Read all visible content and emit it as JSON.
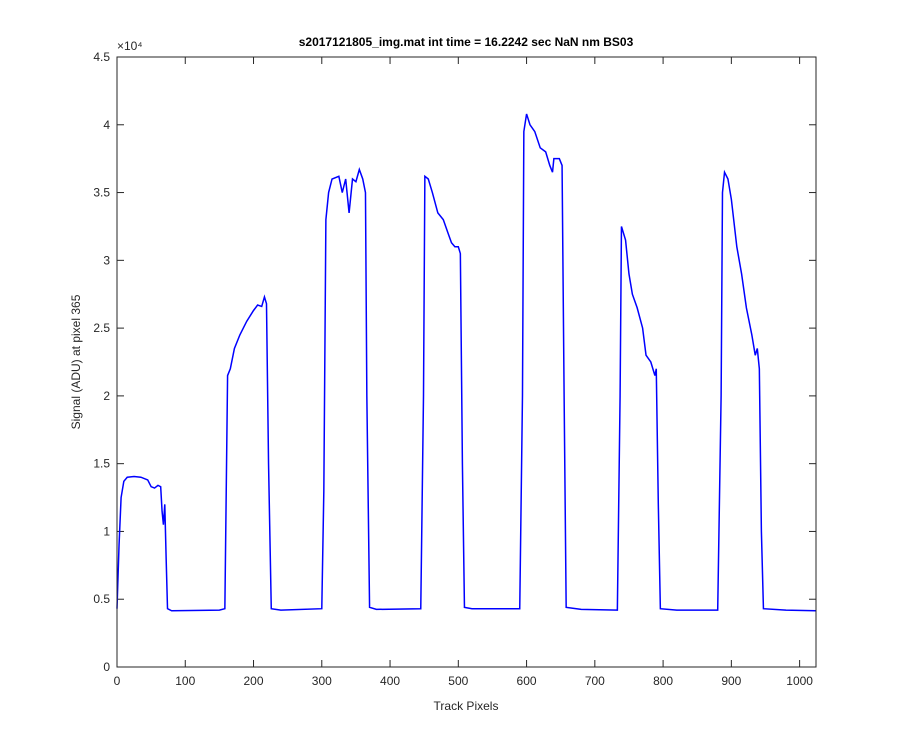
{
  "chart_data": {
    "type": "line",
    "title": "s2017121805_img.mat int time = 16.2242 sec  NaN nm BS03",
    "x_label": "Track Pixels",
    "y_label": "Signal (ADU) at pixel 365",
    "y_exponent_label": "×10⁴",
    "xlim": [
      0,
      1024
    ],
    "ylim": [
      0,
      45000
    ],
    "xticks": [
      0,
      100,
      200,
      300,
      400,
      500,
      600,
      700,
      800,
      900,
      1000
    ],
    "yticks": [
      0,
      {
        "value": 5000,
        "label": "0.5"
      },
      {
        "value": 10000,
        "label": "1"
      },
      {
        "value": 15000,
        "label": "1.5"
      },
      {
        "value": 20000,
        "label": "2"
      },
      {
        "value": 25000,
        "label": "2.5"
      },
      {
        "value": 30000,
        "label": "3"
      },
      {
        "value": 35000,
        "label": "3.5"
      },
      {
        "value": 40000,
        "label": "4"
      },
      {
        "value": 45000,
        "label": "4.5"
      }
    ],
    "series": [
      {
        "color": "#0000ff",
        "x": [
          0,
          3,
          6,
          10,
          15,
          25,
          35,
          45,
          50,
          55,
          60,
          64,
          66,
          68,
          70,
          72,
          74,
          80,
          150,
          158,
          162,
          166,
          172,
          180,
          190,
          200,
          206,
          212,
          216,
          219,
          222,
          226,
          240,
          300,
          303,
          306,
          310,
          315,
          325,
          330,
          335,
          340,
          345,
          350,
          355,
          360,
          364,
          366,
          370,
          380,
          445,
          449,
          451,
          456,
          462,
          470,
          478,
          485,
          490,
          495,
          500,
          503,
          506,
          509,
          520,
          590,
          594,
          596,
          600,
          605,
          612,
          620,
          628,
          634,
          638,
          640,
          648,
          652,
          655,
          658,
          680,
          733,
          737,
          739,
          745,
          750,
          755,
          762,
          770,
          775,
          782,
          788,
          790,
          793,
          796,
          820,
          880,
          885,
          887,
          890,
          895,
          900,
          908,
          915,
          922,
          930,
          935,
          938,
          941,
          944,
          947,
          980,
          1024
        ],
        "values": [
          4300,
          9000,
          12500,
          13700,
          14000,
          14050,
          14000,
          13800,
          13300,
          13200,
          13400,
          13300,
          11500,
          10500,
          12000,
          8000,
          4300,
          4150,
          4200,
          4300,
          21500,
          22000,
          23500,
          24500,
          25500,
          26300,
          26700,
          26600,
          27300,
          26800,
          15000,
          4300,
          4200,
          4300,
          13000,
          33000,
          35000,
          36000,
          36200,
          35000,
          36000,
          33500,
          36000,
          35800,
          36700,
          36000,
          35000,
          20000,
          4400,
          4250,
          4300,
          20000,
          36200,
          36000,
          35000,
          33500,
          33000,
          32000,
          31300,
          31000,
          31000,
          30500,
          15000,
          4400,
          4300,
          4300,
          20000,
          39500,
          40800,
          40000,
          39500,
          38300,
          38000,
          37000,
          36500,
          37500,
          37500,
          37000,
          20000,
          4400,
          4250,
          4200,
          20000,
          32500,
          31500,
          29000,
          27500,
          26500,
          25000,
          23000,
          22500,
          21500,
          22000,
          12000,
          4300,
          4200,
          4200,
          20000,
          35000,
          36500,
          36000,
          34500,
          31000,
          29000,
          26500,
          24500,
          23000,
          23500,
          22000,
          10000,
          4300,
          4200,
          4150
        ]
      }
    ]
  }
}
